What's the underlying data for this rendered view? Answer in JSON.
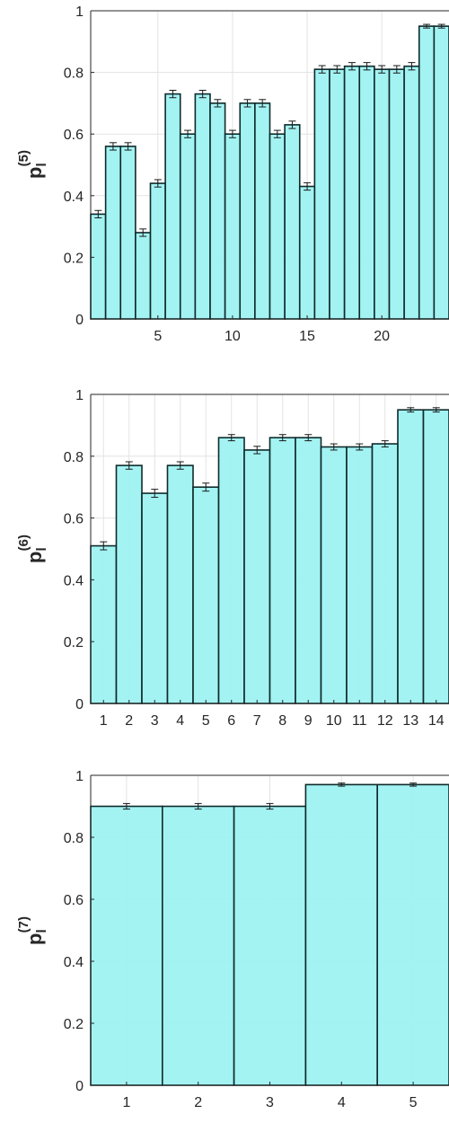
{
  "style": {
    "bar_fill": "#9EF2F2",
    "bar_edge": "#0F2A2A",
    "grid_color": "#E3E3E3",
    "axis_color": "#262626",
    "text_color": "#262626"
  },
  "chart_data": [
    {
      "type": "bar",
      "ylabel_main": "p",
      "ylabel_sub": "l",
      "ylabel_sup": "(5)",
      "ylim": [
        0,
        1
      ],
      "yticks": [
        "0",
        "0.2",
        "0.4",
        "0.6",
        "0.8",
        "1"
      ],
      "xtick_labels": [
        "5",
        "10",
        "15",
        "20"
      ],
      "xticks_at": [
        5,
        10,
        15,
        20
      ],
      "grid": true,
      "categories": [
        1,
        2,
        3,
        4,
        5,
        6,
        7,
        8,
        9,
        10,
        11,
        12,
        13,
        14,
        15,
        16,
        17,
        18,
        19,
        20,
        21,
        22,
        23,
        24
      ],
      "values": [
        0.34,
        0.56,
        0.56,
        0.28,
        0.44,
        0.73,
        0.6,
        0.73,
        0.7,
        0.6,
        0.7,
        0.7,
        0.6,
        0.63,
        0.43,
        0.81,
        0.81,
        0.82,
        0.82,
        0.81,
        0.81,
        0.82,
        0.95,
        0.95
      ],
      "errors": [
        0.012,
        0.012,
        0.012,
        0.012,
        0.012,
        0.012,
        0.012,
        0.012,
        0.012,
        0.012,
        0.012,
        0.012,
        0.012,
        0.012,
        0.012,
        0.012,
        0.012,
        0.012,
        0.012,
        0.012,
        0.012,
        0.012,
        0.006,
        0.006
      ]
    },
    {
      "type": "bar",
      "ylabel_main": "p",
      "ylabel_sub": "l",
      "ylabel_sup": "(6)",
      "ylim": [
        0,
        1
      ],
      "yticks": [
        "0",
        "0.2",
        "0.4",
        "0.6",
        "0.8",
        "1"
      ],
      "xtick_labels": [
        "1",
        "2",
        "3",
        "4",
        "5",
        "6",
        "7",
        "8",
        "9",
        "10",
        "11",
        "12",
        "13",
        "14"
      ],
      "xticks_at": [
        1,
        2,
        3,
        4,
        5,
        6,
        7,
        8,
        9,
        10,
        11,
        12,
        13,
        14
      ],
      "grid": true,
      "categories": [
        1,
        2,
        3,
        4,
        5,
        6,
        7,
        8,
        9,
        10,
        11,
        12,
        13,
        14
      ],
      "values": [
        0.51,
        0.77,
        0.68,
        0.77,
        0.7,
        0.86,
        0.82,
        0.86,
        0.86,
        0.83,
        0.83,
        0.84,
        0.95,
        0.95
      ],
      "errors": [
        0.013,
        0.012,
        0.013,
        0.012,
        0.013,
        0.01,
        0.012,
        0.01,
        0.01,
        0.01,
        0.01,
        0.01,
        0.007,
        0.007
      ]
    },
    {
      "type": "bar",
      "ylabel_main": "p",
      "ylabel_sub": "l",
      "ylabel_sup": "(7)",
      "ylim": [
        0,
        1
      ],
      "yticks": [
        "0",
        "0.2",
        "0.4",
        "0.6",
        "0.8",
        "1"
      ],
      "xtick_labels": [
        "1",
        "2",
        "3",
        "4",
        "5"
      ],
      "xticks_at": [
        1,
        2,
        3,
        4,
        5
      ],
      "grid": true,
      "categories": [
        1,
        2,
        3,
        4,
        5
      ],
      "values": [
        0.9,
        0.9,
        0.9,
        0.97,
        0.97
      ],
      "errors": [
        0.009,
        0.009,
        0.009,
        0.005,
        0.005
      ]
    }
  ]
}
